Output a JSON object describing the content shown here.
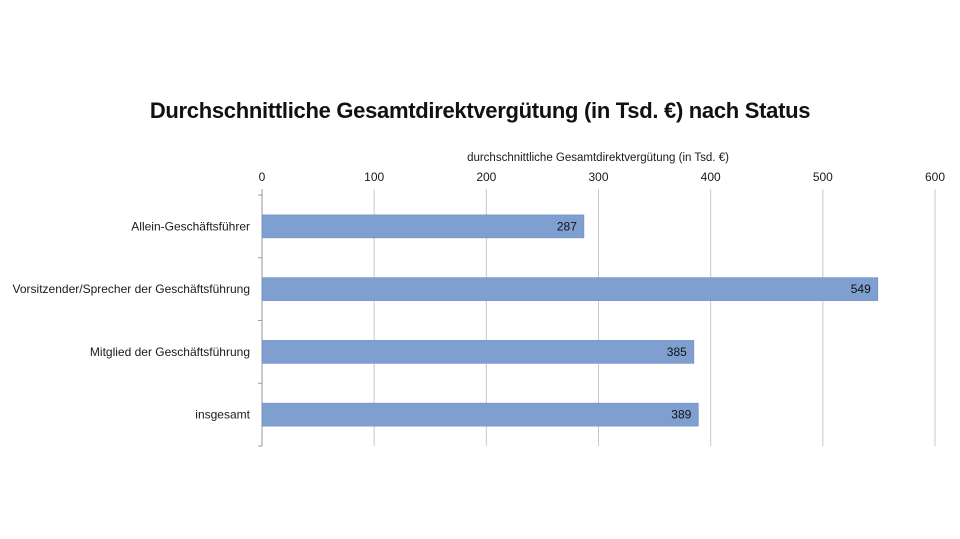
{
  "chart_data": {
    "type": "bar",
    "orientation": "horizontal",
    "title": "Durchschnittliche Gesamtdirektvergütung (in Tsd. €) nach Status",
    "xlabel": "durchschnittliche Gesamtdirektvergütung (in Tsd. €)",
    "ylabel": "",
    "x_axis_position": "top",
    "categories": [
      "Allein-Geschäftsführer",
      "Vorsitzender/Sprecher der Geschäftsführung",
      "Mitglied der Geschäftsführung",
      "insgesamt"
    ],
    "values": [
      287,
      549,
      385,
      389
    ],
    "xlim": [
      0,
      600
    ],
    "ticks": [
      0,
      100,
      200,
      300,
      400,
      500,
      600
    ],
    "grid": true,
    "legend": false,
    "colors": {
      "bar": "#7f9fd0",
      "grid": "#c8c8c8",
      "axis": "#9a9a9a"
    }
  }
}
